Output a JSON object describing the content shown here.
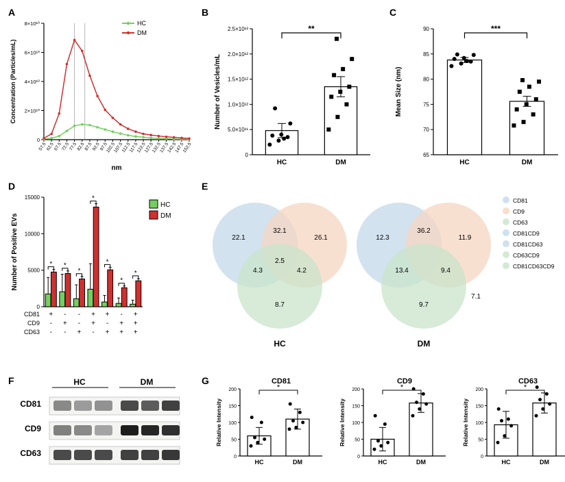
{
  "colors": {
    "hc": "#75ce5e",
    "dm": "#d0302f",
    "black": "#000000",
    "axis": "#000000",
    "bg": "#ffffff",
    "barFill": "#ffffff",
    "venn_cd81": "#c4d8ea",
    "venn_cd9": "#f5d6c2",
    "venn_cd63": "#c9e4cb",
    "blot1": "#555555",
    "blot2": "#2e2e2e"
  },
  "A": {
    "title": "A",
    "xLabel": "nm",
    "yLabel": "Concentration (Particles/mL)",
    "yMaxLabel": "8×10¹⁰",
    "yTicks": [
      "0",
      "2×10¹⁰",
      "4×10¹⁰",
      "6×10¹⁰",
      "8×10¹⁰"
    ],
    "yTickVals": [
      0,
      2,
      4,
      6,
      8
    ],
    "xTickLabels": [
      "57.5",
      "62.5",
      "67.5",
      "72.5",
      "77.5",
      "82.5",
      "87.5",
      "92.5",
      "97.5",
      "102.5",
      "107.5",
      "112.5",
      "117.5",
      "122.5",
      "127.5",
      "132.5",
      "137.5",
      "142.5",
      "147.5",
      "152.5"
    ],
    "legend": [
      {
        "label": "HC",
        "colorKey": "hc"
      },
      {
        "label": "DM",
        "colorKey": "dm"
      }
    ],
    "series": {
      "HC": [
        0.05,
        0.1,
        0.25,
        0.6,
        0.95,
        1.05,
        1.0,
        0.85,
        0.7,
        0.55,
        0.42,
        0.3,
        0.22,
        0.17,
        0.12,
        0.09,
        0.07,
        0.05,
        0.04,
        0.03
      ],
      "DM": [
        0.1,
        0.4,
        1.8,
        5.2,
        6.85,
        6.1,
        4.4,
        3.0,
        2.05,
        1.5,
        1.05,
        0.75,
        0.55,
        0.4,
        0.32,
        0.25,
        0.2,
        0.16,
        0.12,
        0.08
      ]
    }
  },
  "B": {
    "title": "B",
    "yLabel": "Number of Vesicles/mL",
    "sig": "**",
    "yTicks": [
      "0",
      "5.0×10¹¹",
      "1.0×10¹²",
      "1.5×10¹²",
      "2.0×10¹²",
      "2.5×10¹²"
    ],
    "yTickVals": [
      0,
      0.5,
      1.0,
      1.5,
      2.0,
      2.5
    ],
    "groups": [
      "HC",
      "DM"
    ],
    "data": {
      "HC": {
        "mean": 0.48,
        "sem": 0.14,
        "points": [
          0.2,
          0.28,
          0.35,
          0.38,
          0.4,
          0.62,
          0.92,
          0.32
        ]
      },
      "DM": {
        "mean": 1.35,
        "sem": 0.2,
        "points": [
          0.5,
          0.75,
          1.0,
          1.15,
          1.25,
          1.35,
          1.58,
          1.7,
          1.9,
          2.3
        ]
      }
    }
  },
  "C": {
    "title": "C",
    "yLabel": "Mean Size (nm)",
    "sig": "***",
    "yTicks": [
      "65",
      "70",
      "75",
      "80",
      "85",
      "90"
    ],
    "yTickVals": [
      65,
      70,
      75,
      80,
      85,
      90
    ],
    "groups": [
      "HC",
      "DM"
    ],
    "data": {
      "HC": {
        "mean": 83.8,
        "sem": 0.5,
        "points": [
          82.6,
          83.1,
          83.5,
          84.0,
          84.2,
          84.8,
          84.9,
          83.6
        ]
      },
      "DM": {
        "mean": 75.6,
        "sem": 1.0,
        "points": [
          70.8,
          71.5,
          73.0,
          74.0,
          75.0,
          76.0,
          77.5,
          78.5,
          79.5,
          79.8
        ]
      }
    }
  },
  "D": {
    "title": "D",
    "yLabel": "Number of Positive EVs",
    "yTicks": [
      "0",
      "5000",
      "10000",
      "15000"
    ],
    "yTickVals": [
      0,
      5000,
      10000,
      15000
    ],
    "legend": [
      {
        "label": "HC",
        "colorKey": "hc"
      },
      {
        "label": "DM",
        "colorKey": "dm"
      }
    ],
    "markerRows": [
      "CD81",
      "CD9",
      "CD63"
    ],
    "markers": [
      [
        "+",
        "-",
        "-",
        "+",
        "+",
        "-",
        "+"
      ],
      [
        "-",
        "+",
        "-",
        "+",
        "-",
        "+",
        "+"
      ],
      [
        "-",
        "-",
        "+",
        "-",
        "+",
        "+",
        "+"
      ]
    ],
    "bars": [
      {
        "hc": 1750,
        "dm": 4750,
        "sig": "*",
        "hcErr": 2250,
        "dmErr": 350
      },
      {
        "hc": 2050,
        "dm": 4550,
        "sig": "*",
        "hcErr": 2400,
        "dmErr": 350
      },
      {
        "hc": 1100,
        "dm": 3800,
        "sig": "*",
        "hcErr": 1900,
        "dmErr": 350
      },
      {
        "hc": 2400,
        "dm": 13650,
        "sig": "*",
        "hcErr": 3500,
        "dmErr": 450
      },
      {
        "hc": 650,
        "dm": 5050,
        "sig": "*",
        "hcErr": 900,
        "dmErr": 350
      },
      {
        "hc": 450,
        "dm": 2600,
        "sig": "*",
        "hcErr": 750,
        "dmErr": 250
      },
      {
        "hc": 350,
        "dm": 3550,
        "sig": "*",
        "hcErr": 550,
        "dmErr": 300
      }
    ]
  },
  "E": {
    "title": "E",
    "legend": [
      "CD81",
      "CD9",
      "CD63",
      "CD81CD9",
      "CD81CD63",
      "CD63CD9",
      "CD81CD63CD9"
    ],
    "legendColorKeys": [
      "venn_cd81",
      "venn_cd9",
      "venn_cd63",
      "venn_cd81",
      "venn_cd81",
      "venn_cd63",
      "venn_cd63"
    ],
    "HC": {
      "cd81": 22.1,
      "cd9": 26.1,
      "cd63": 8.7,
      "cd81cd9": 32.1,
      "cd81cd63": 4.3,
      "cd9cd63": 4.2,
      "triple": 2.5,
      "label": "HC"
    },
    "DM": {
      "cd81": 12.3,
      "cd9": 11.9,
      "cd63": 9.7,
      "cd81cd9": 36.2,
      "cd81cd63": 13.4,
      "cd9cd63": 9.4,
      "triple": " ",
      "extra": 7.1,
      "label": "DM"
    }
  },
  "F": {
    "title": "F",
    "cols": [
      "HC",
      "DM"
    ],
    "rows": [
      "CD81",
      "CD9",
      "CD63"
    ],
    "intensities": {
      "CD81": [
        0.35,
        0.25,
        0.3,
        0.7,
        0.6,
        0.75
      ],
      "CD9": [
        0.4,
        0.35,
        0.2,
        0.95,
        0.9,
        0.85
      ],
      "CD63": [
        0.7,
        0.7,
        0.7,
        0.75,
        0.75,
        0.8
      ]
    }
  },
  "G": {
    "title": "G",
    "panels": [
      "CD81",
      "CD9",
      "CD63"
    ],
    "yLabel": "Relative Intensity",
    "yTicks": [
      "0",
      "50",
      "100",
      "150",
      "200"
    ],
    "yTickVals": [
      0,
      50,
      100,
      150,
      200
    ],
    "sig": "*",
    "data": {
      "CD81": {
        "HC": {
          "mean": 60,
          "err": 25,
          "points": [
            30,
            40,
            50,
            55,
            100,
            115
          ]
        },
        "DM": {
          "mean": 110,
          "err": 30,
          "points": [
            80,
            85,
            100,
            105,
            130,
            155
          ]
        }
      },
      "CD9": {
        "HC": {
          "mean": 50,
          "err": 35,
          "points": [
            20,
            30,
            40,
            45,
            95,
            120
          ]
        },
        "DM": {
          "mean": 158,
          "err": 28,
          "points": [
            120,
            140,
            155,
            160,
            185,
            200
          ]
        }
      },
      "CD63": {
        "HC": {
          "mean": 93,
          "err": 40,
          "points": [
            40,
            60,
            90,
            105,
            110,
            140
          ]
        },
        "DM": {
          "mean": 158,
          "err": 30,
          "points": [
            120,
            140,
            155,
            168,
            185,
            205
          ]
        }
      }
    }
  }
}
